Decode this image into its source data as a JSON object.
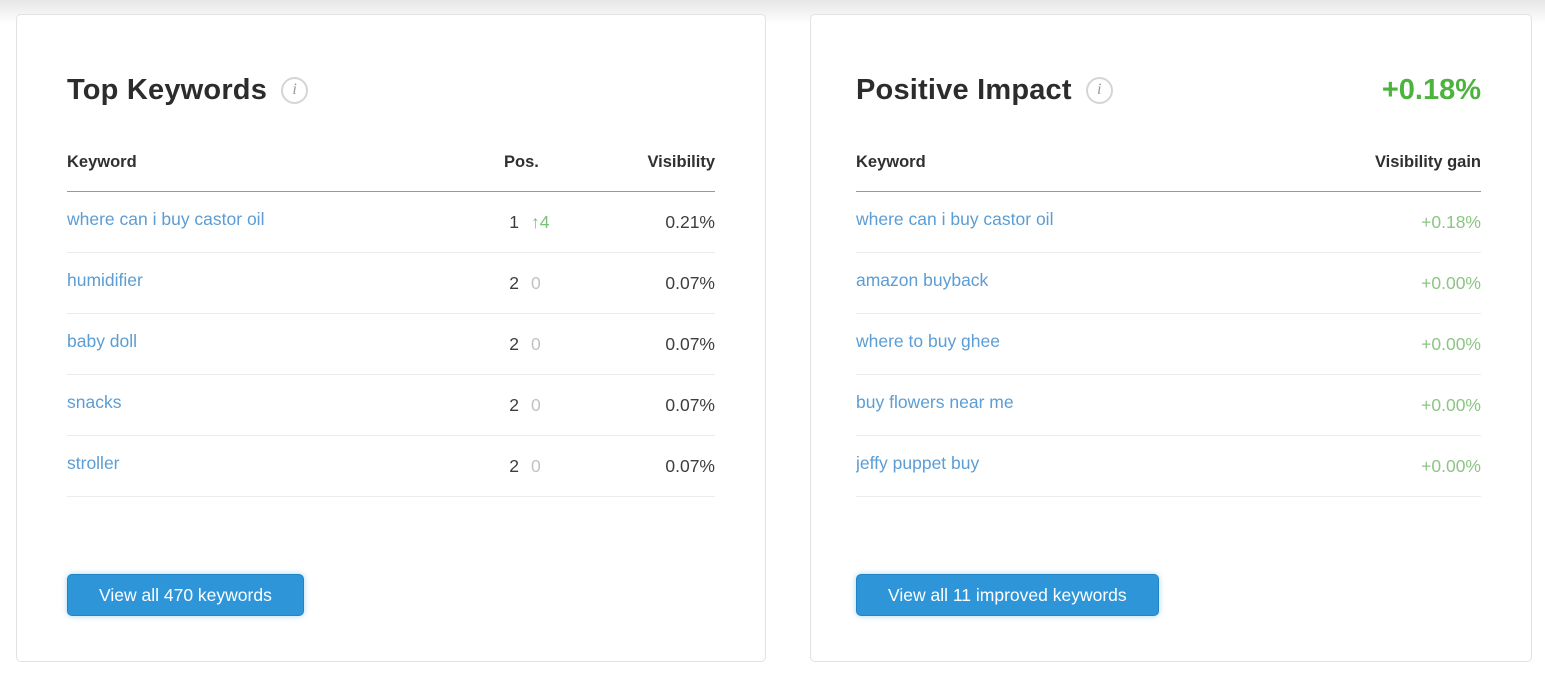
{
  "colors": {
    "link_blue": "#5b9dd4",
    "button_blue": "#2e96d8",
    "gain_green_strong": "#4db33e",
    "gain_green_soft": "#8cc584",
    "pos_up_green": "#7cc276",
    "pos_zero_gray": "#c2c2c2"
  },
  "top_keywords": {
    "title": "Top Keywords",
    "columns": {
      "keyword": "Keyword",
      "pos": "Pos.",
      "visibility": "Visibility"
    },
    "rows": [
      {
        "keyword": "where can i buy castor oil",
        "pos": "1",
        "change": "↑4",
        "change_type": "up",
        "visibility": "0.21%"
      },
      {
        "keyword": "humidifier",
        "pos": "2",
        "change": "0",
        "change_type": "zero",
        "visibility": "0.07%"
      },
      {
        "keyword": "baby doll",
        "pos": "2",
        "change": "0",
        "change_type": "zero",
        "visibility": "0.07%"
      },
      {
        "keyword": "snacks",
        "pos": "2",
        "change": "0",
        "change_type": "zero",
        "visibility": "0.07%"
      },
      {
        "keyword": "stroller",
        "pos": "2",
        "change": "0",
        "change_type": "zero",
        "visibility": "0.07%"
      }
    ],
    "button_label": "View all 470 keywords"
  },
  "positive_impact": {
    "title": "Positive Impact",
    "total_gain": "+0.18%",
    "columns": {
      "keyword": "Keyword",
      "gain": "Visibility gain"
    },
    "rows": [
      {
        "keyword": "where can i buy castor oil",
        "gain": "+0.18%"
      },
      {
        "keyword": "amazon buyback",
        "gain": "+0.00%"
      },
      {
        "keyword": "where to buy ghee",
        "gain": "+0.00%"
      },
      {
        "keyword": "buy flowers near me",
        "gain": "+0.00%"
      },
      {
        "keyword": "jeffy puppet buy",
        "gain": "+0.00%"
      }
    ],
    "button_label": "View all 11 improved keywords"
  }
}
